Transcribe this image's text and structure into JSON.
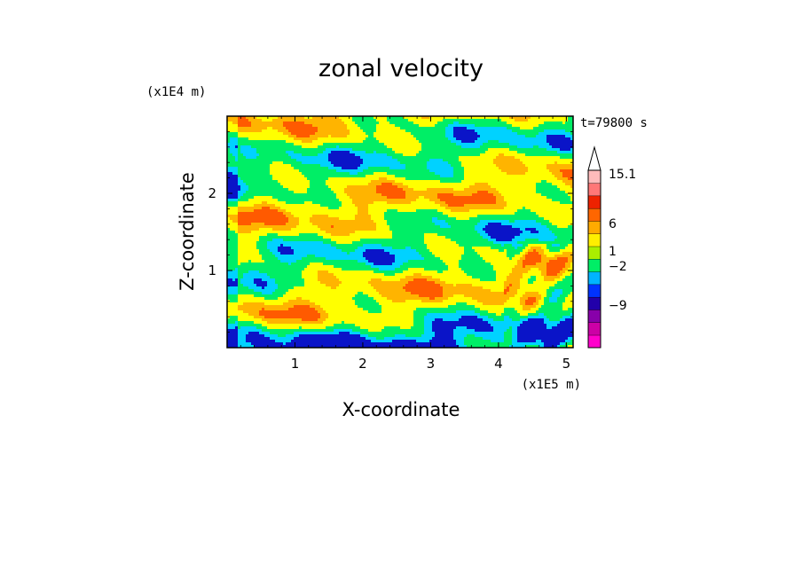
{
  "chart_data": {
    "type": "heatmap",
    "title": "zonal velocity",
    "xlabel": "X-coordinate",
    "ylabel": "Z-coordinate",
    "x_unit": "(x1E5 m)",
    "y_unit": "(x1E4 m)",
    "time_label": "t=79800 s",
    "xlim": [
      0,
      5.1
    ],
    "ylim": [
      0,
      3.0
    ],
    "x_ticks": [
      1,
      2,
      3,
      4,
      5
    ],
    "y_ticks": [
      1,
      2
    ],
    "colorbar": {
      "colors": [
        "#ff00cc",
        "#cc00a6",
        "#8800aa",
        "#2200aa",
        "#0033ff",
        "#00b4ff",
        "#00ee66",
        "#aaee00",
        "#ffee00",
        "#ffaa00",
        "#ff6600",
        "#ee2200",
        "#ff7777",
        "#ffbbbb"
      ],
      "tick_labels": [
        "15.1",
        "6",
        "1",
        "−2",
        "−9"
      ],
      "extend_top": true
    },
    "field_levels": [
      {
        "level": "strong-negative",
        "color": "#0a14c8"
      },
      {
        "level": "negative",
        "color": "#00d2ff"
      },
      {
        "level": "weak",
        "color": "#00ee66"
      },
      {
        "level": "near-zero",
        "color": "#ffff00"
      },
      {
        "level": "positive",
        "color": "#ffb400"
      },
      {
        "level": "strong-positive",
        "color": "#ff5a00"
      }
    ]
  }
}
